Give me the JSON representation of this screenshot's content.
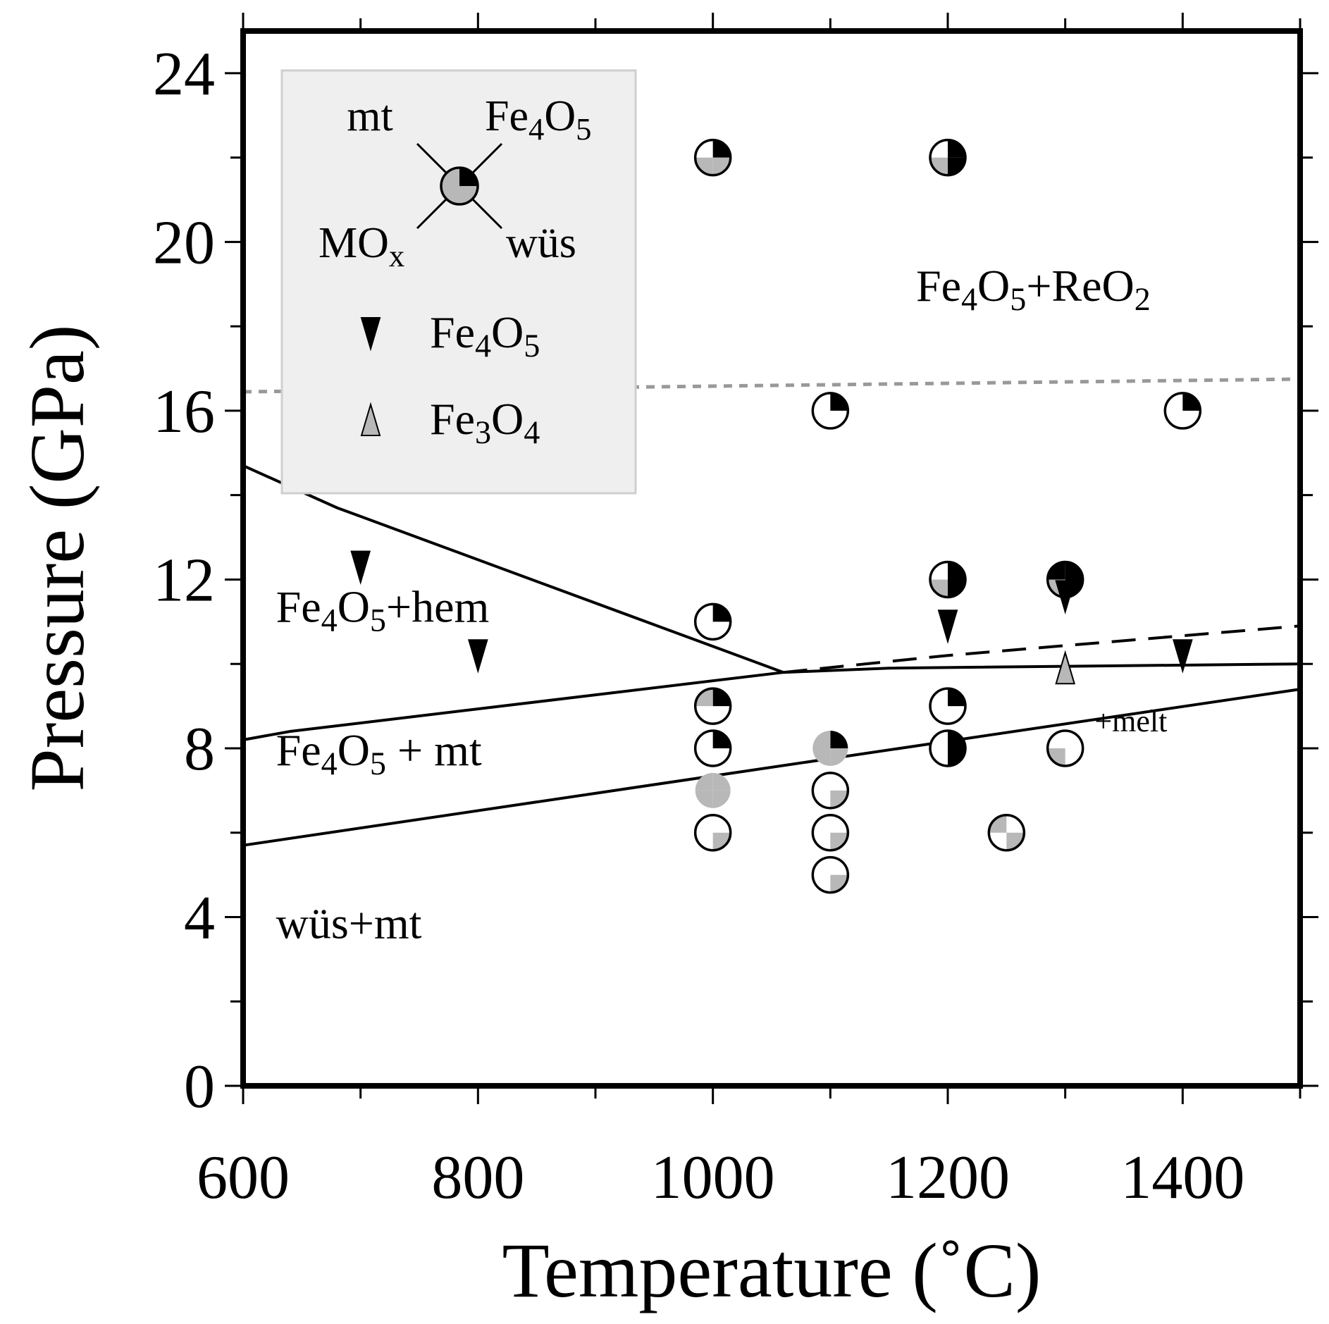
{
  "chart_data": {
    "type": "scatter",
    "xlabel": "Temperature (˚C)",
    "ylabel": "Pressure (GPa)",
    "xlim": [
      600,
      1500
    ],
    "ylim": [
      0,
      25
    ],
    "x_ticks": [
      600,
      800,
      1000,
      1200,
      1400
    ],
    "y_ticks": [
      0,
      4,
      8,
      12,
      16,
      20,
      24
    ],
    "grid": false,
    "legend": {
      "placement": "top-left",
      "quadrant_key": {
        "top_left": "mt",
        "top_right": "Fe4O5",
        "bottom_left": "MOx",
        "bottom_right": "wüs"
      },
      "markers": [
        {
          "symbol": "triangle-down",
          "color": "#000000",
          "label": "Fe4O5"
        },
        {
          "symbol": "triangle-up",
          "color": "#b8b8b8",
          "label": "Fe3O4"
        }
      ]
    },
    "boundaries": [
      {
        "style": "solid",
        "points": [
          [
            600,
            14.7
          ],
          [
            680,
            13.7
          ],
          [
            1060,
            9.8
          ]
        ]
      },
      {
        "style": "solid",
        "points": [
          [
            600,
            8.2
          ],
          [
            640,
            8.4
          ],
          [
            1060,
            9.8
          ],
          [
            1150,
            9.9
          ],
          [
            1500,
            10.0
          ]
        ]
      },
      {
        "style": "dashed",
        "points": [
          [
            1060,
            9.8
          ],
          [
            1200,
            10.2
          ],
          [
            1500,
            10.9
          ]
        ]
      },
      {
        "style": "solid",
        "points": [
          [
            600,
            5.7
          ],
          [
            1500,
            9.4
          ]
        ]
      },
      {
        "style": "dotted",
        "color": "#999999",
        "points": [
          [
            600,
            16.45
          ],
          [
            1500,
            16.75
          ]
        ]
      }
    ],
    "region_labels": [
      {
        "text": "Fe4O5+ReO2",
        "x": 1173,
        "y": 18.6
      },
      {
        "text": "Fe4O5+hem",
        "x": 628,
        "y": 11.0
      },
      {
        "text": "Fe4O5 + mt",
        "x": 628,
        "y": 7.6
      },
      {
        "text": "wüs+mt",
        "x": 628,
        "y": 3.5
      }
    ],
    "annotations": [
      {
        "text": "+melt",
        "x": 1325,
        "y": 8.4
      }
    ],
    "circles": [
      {
        "x": 1000,
        "y": 22,
        "mt": "none",
        "fe4o5": "black",
        "mox": "gray",
        "wus": "gray",
        "outline": true
      },
      {
        "x": 1200,
        "y": 22,
        "mt": "none",
        "fe4o5": "black",
        "mox": "gray",
        "wus": "black",
        "outline": true
      },
      {
        "x": 1100,
        "y": 16,
        "mt": "none",
        "fe4o5": "black",
        "mox": "none",
        "wus": "none",
        "outline": true
      },
      {
        "x": 1400,
        "y": 16,
        "mt": "none",
        "fe4o5": "black",
        "mox": "none",
        "wus": "none",
        "outline": true
      },
      {
        "x": 1200,
        "y": 12,
        "mt": "none",
        "fe4o5": "black",
        "mox": "gray",
        "wus": "black",
        "outline": true
      },
      {
        "x": 1300,
        "y": 12,
        "mt": "black",
        "fe4o5": "black",
        "mox": "gray",
        "wus": "black",
        "outline": true
      },
      {
        "x": 1000,
        "y": 11,
        "mt": "none",
        "fe4o5": "black",
        "mox": "none",
        "wus": "none",
        "outline": true
      },
      {
        "x": 1000,
        "y": 9,
        "mt": "gray",
        "fe4o5": "black",
        "mox": "none",
        "wus": "none",
        "outline": true
      },
      {
        "x": 1200,
        "y": 9,
        "mt": "none",
        "fe4o5": "black",
        "mox": "none",
        "wus": "none",
        "outline": true
      },
      {
        "x": 1000,
        "y": 8,
        "mt": "none",
        "fe4o5": "black",
        "mox": "none",
        "wus": "none",
        "outline": true
      },
      {
        "x": 1100,
        "y": 8,
        "mt": "gray",
        "fe4o5": "black",
        "mox": "gray",
        "wus": "gray",
        "outline": false
      },
      {
        "x": 1200,
        "y": 8,
        "mt": "none",
        "fe4o5": "black",
        "mox": "none",
        "wus": "black",
        "outline": true
      },
      {
        "x": 1300,
        "y": 8,
        "mt": "none",
        "fe4o5": "none",
        "mox": "gray",
        "wus": "none",
        "outline": true
      },
      {
        "x": 1000,
        "y": 7,
        "mt": "gray",
        "fe4o5": "gray",
        "mox": "gray",
        "wus": "gray",
        "outline": false
      },
      {
        "x": 1100,
        "y": 7,
        "mt": "none",
        "fe4o5": "none",
        "mox": "none",
        "wus": "gray",
        "outline": true
      },
      {
        "x": 1000,
        "y": 6,
        "mt": "none",
        "fe4o5": "none",
        "mox": "none",
        "wus": "gray",
        "outline": true
      },
      {
        "x": 1100,
        "y": 6,
        "mt": "none",
        "fe4o5": "none",
        "mox": "none",
        "wus": "gray",
        "outline": true
      },
      {
        "x": 1250,
        "y": 6,
        "mt": "gray",
        "fe4o5": "none",
        "mox": "none",
        "wus": "gray",
        "outline": true
      },
      {
        "x": 1100,
        "y": 5,
        "mt": "none",
        "fe4o5": "none",
        "mox": "none",
        "wus": "gray",
        "outline": true
      }
    ],
    "triangles": [
      {
        "x": 700,
        "y": 12.3,
        "direction": "down",
        "color": "#000000",
        "phase": "Fe4O5"
      },
      {
        "x": 800,
        "y": 10.2,
        "direction": "down",
        "color": "#000000",
        "phase": "Fe4O5"
      },
      {
        "x": 1200,
        "y": 10.9,
        "direction": "down",
        "color": "#000000",
        "phase": "Fe4O5"
      },
      {
        "x": 1300,
        "y": 11.6,
        "direction": "down",
        "color": "#000000",
        "phase": "Fe4O5"
      },
      {
        "x": 1400,
        "y": 10.2,
        "direction": "down",
        "color": "#000000",
        "phase": "Fe4O5"
      },
      {
        "x": 1300,
        "y": 9.9,
        "direction": "up",
        "color": "#b8b8b8",
        "phase": "Fe3O4"
      }
    ]
  }
}
